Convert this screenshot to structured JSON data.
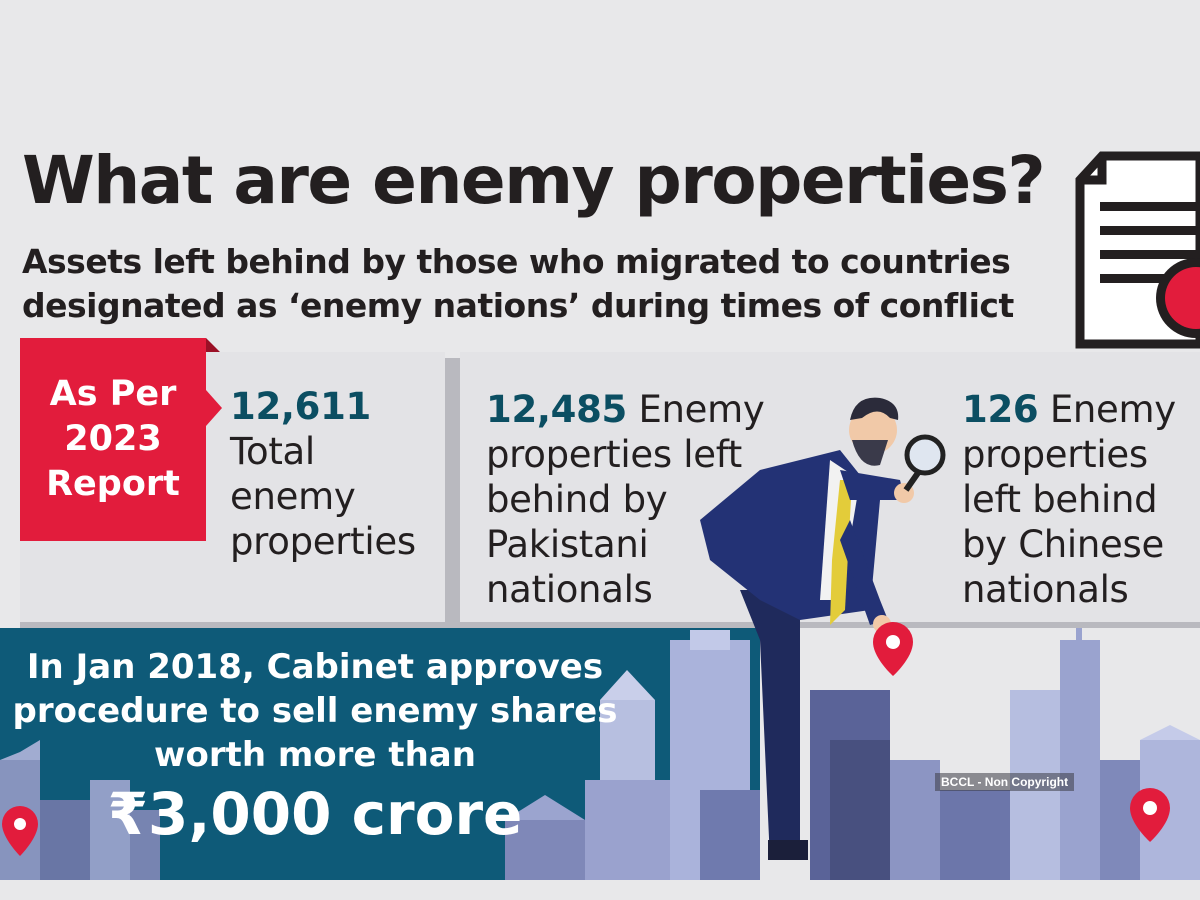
{
  "title": "What are enemy properties?",
  "subtitle": "Assets left behind by those who migrated to countries designated as ‘enemy nations’ during times of conflict",
  "badge": {
    "line1": "As Per",
    "line2": "2023",
    "line3": "Report"
  },
  "stats": [
    {
      "number": "12,611",
      "line1": "Total",
      "line2": "enemy",
      "line3": "properties"
    },
    {
      "number": "12,485",
      "suffix": "Enemy",
      "line1": "properties left",
      "line2": "behind by",
      "line3": "Pakistani",
      "line4": "nationals"
    },
    {
      "number": "126",
      "suffix": "Enemy",
      "line1": "properties",
      "line2": "left behind",
      "line3": "by Chinese",
      "line4": "nationals"
    }
  ],
  "banner": {
    "line1": "In Jan 2018, Cabinet approves",
    "line2": "procedure to sell enemy shares",
    "line3": "worth more than",
    "amount": "₹3,000 crore"
  },
  "credit": "BCCL - Non Copyright",
  "colors": {
    "accent_red": "#e21c3c",
    "number_teal": "#0b4e62",
    "banner_blue": "#0e5a78"
  }
}
